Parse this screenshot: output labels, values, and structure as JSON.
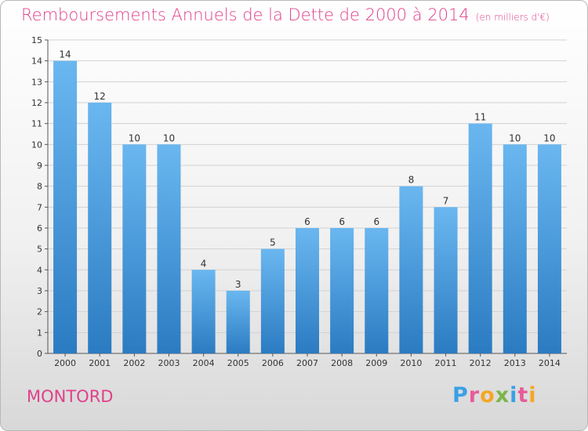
{
  "header": {
    "title": "Remboursements Annuels de la Dette de 2000 à 2014",
    "subtitle": "(en milliers d'€)"
  },
  "town": "MONTORD",
  "logo": {
    "text": "Proxiti",
    "letters": [
      "P",
      "r",
      "o",
      "x",
      "i",
      "t",
      "i"
    ]
  },
  "colors": {
    "bar_light": "#66b3ee",
    "bar_dark": "#2f7fc5",
    "title": "#e0418a",
    "logo": [
      "#3aa0e6",
      "#e85b9a",
      "#f5a623",
      "#7ab648",
      "#3aa0e6",
      "#e85b9a",
      "#f5a623"
    ]
  },
  "chart_data": {
    "type": "bar",
    "title": "Remboursements Annuels de la Dette de 2000 à 2014",
    "unit": "(en milliers d'€)",
    "categories": [
      "2000",
      "2001",
      "2002",
      "2003",
      "2004",
      "2005",
      "2006",
      "2007",
      "2008",
      "2009",
      "2010",
      "2011",
      "2012",
      "2013",
      "2014"
    ],
    "values": [
      14,
      12,
      10,
      10,
      4,
      3,
      5,
      6,
      6,
      6,
      8,
      7,
      11,
      10,
      10
    ],
    "ylim": [
      0,
      15
    ],
    "yticks": [
      "0",
      "1",
      "2",
      "3",
      "4",
      "5",
      "6",
      "7",
      "8",
      "9",
      "10",
      "11",
      "12",
      "13",
      "14",
      "15"
    ],
    "grid": true
  }
}
